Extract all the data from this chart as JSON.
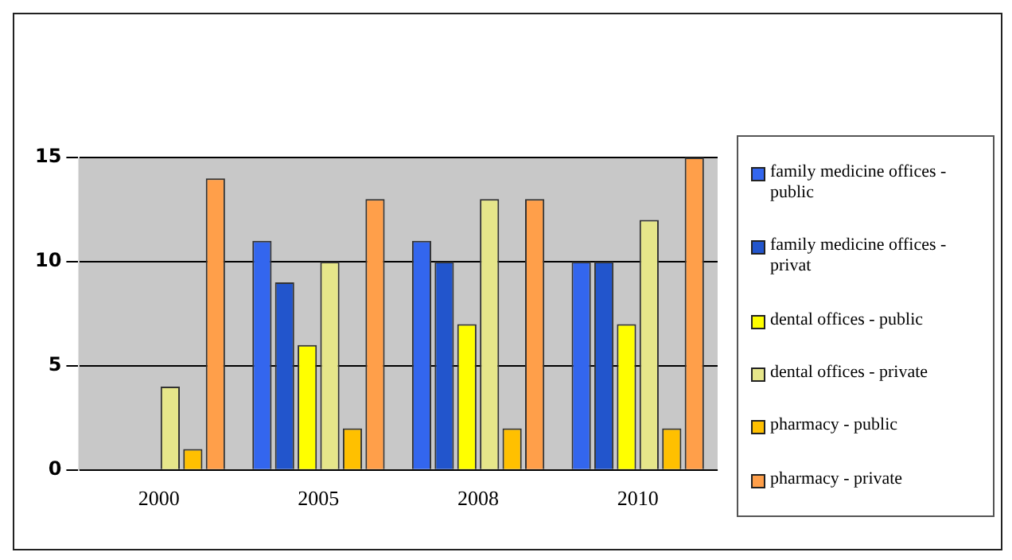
{
  "chart_data": {
    "type": "bar",
    "categories": [
      "2000",
      "2005",
      "2008",
      "2010"
    ],
    "series": [
      {
        "name": "family medicine offices - public",
        "color": "#3366ee",
        "values": [
          0,
          11,
          11,
          10
        ]
      },
      {
        "name": "family medicine offices - privat",
        "color": "#2255cc",
        "values": [
          0,
          9,
          10,
          10
        ]
      },
      {
        "name": "dental offices - public",
        "color": "#ffff00",
        "values": [
          0,
          6,
          7,
          7
        ]
      },
      {
        "name": "dental offices - private",
        "color": "#e6e68a",
        "values": [
          4,
          10,
          13,
          12
        ]
      },
      {
        "name": "pharmacy - public",
        "color": "#ffc000",
        "values": [
          1,
          2,
          2,
          2
        ]
      },
      {
        "name": "pharmacy - private",
        "color": "#ff9f4a",
        "values": [
          14,
          13,
          13,
          15
        ]
      }
    ],
    "ylim": [
      0,
      15
    ],
    "yticks": [
      0,
      5,
      10,
      15
    ],
    "grid": "y",
    "legend": "right"
  }
}
